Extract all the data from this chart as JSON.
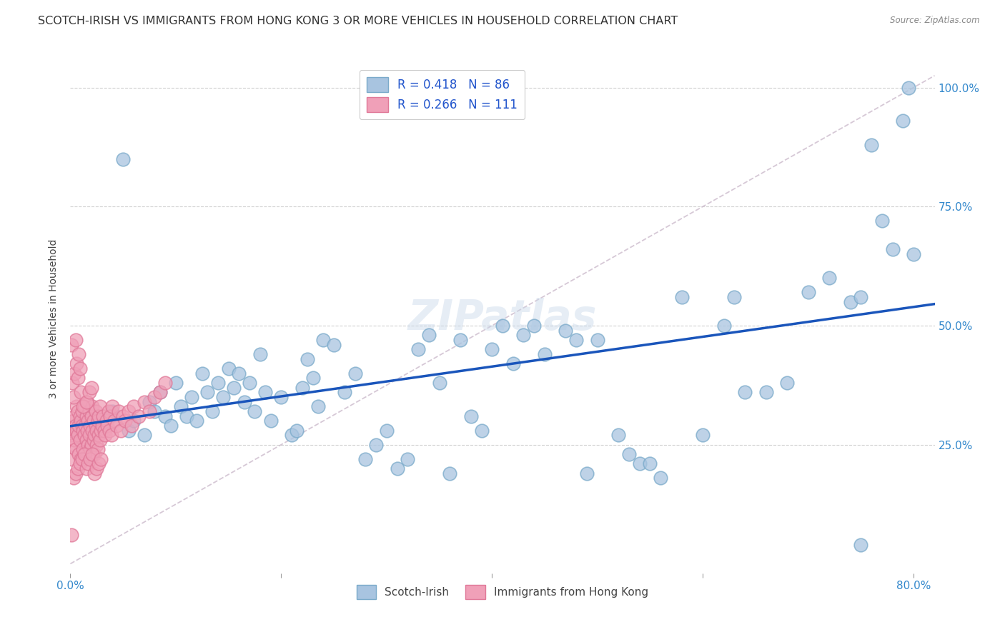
{
  "title": "SCOTCH-IRISH VS IMMIGRANTS FROM HONG KONG 3 OR MORE VEHICLES IN HOUSEHOLD CORRELATION CHART",
  "source": "Source: ZipAtlas.com",
  "ylabel": "3 or more Vehicles in Household",
  "xlim": [
    0.0,
    0.82
  ],
  "ylim": [
    -0.02,
    1.05
  ],
  "scotch_irish_color": "#a8c4e0",
  "scotch_irish_edge": "#7aaaca",
  "hk_color": "#f0a0b8",
  "hk_edge": "#e07898",
  "scotch_irish_R": 0.418,
  "scotch_irish_N": 86,
  "hk_R": 0.266,
  "hk_N": 111,
  "regression_line_color": "#1a55bb",
  "regression_line_pink": "#d080a0",
  "watermark": "ZIPatlas",
  "background_color": "#ffffff",
  "grid_color": "#cccccc",
  "title_fontsize": 11.5,
  "axis_label_fontsize": 10,
  "tick_fontsize": 11,
  "legend_fontsize": 12,
  "si_x": [
    0.025,
    0.04,
    0.055,
    0.06,
    0.07,
    0.075,
    0.08,
    0.085,
    0.09,
    0.095,
    0.1,
    0.105,
    0.11,
    0.115,
    0.12,
    0.125,
    0.13,
    0.135,
    0.14,
    0.145,
    0.15,
    0.155,
    0.16,
    0.165,
    0.17,
    0.175,
    0.18,
    0.185,
    0.19,
    0.2,
    0.21,
    0.215,
    0.22,
    0.225,
    0.23,
    0.235,
    0.24,
    0.25,
    0.26,
    0.27,
    0.28,
    0.29,
    0.3,
    0.31,
    0.32,
    0.33,
    0.34,
    0.35,
    0.36,
    0.37,
    0.38,
    0.39,
    0.4,
    0.41,
    0.42,
    0.43,
    0.44,
    0.45,
    0.47,
    0.48,
    0.49,
    0.5,
    0.52,
    0.53,
    0.54,
    0.55,
    0.56,
    0.58,
    0.6,
    0.62,
    0.63,
    0.64,
    0.66,
    0.68,
    0.7,
    0.72,
    0.74,
    0.75,
    0.76,
    0.77,
    0.78,
    0.79,
    0.795,
    0.8,
    0.75,
    0.05
  ],
  "si_y": [
    0.3,
    0.32,
    0.28,
    0.3,
    0.27,
    0.34,
    0.32,
    0.36,
    0.31,
    0.29,
    0.38,
    0.33,
    0.31,
    0.35,
    0.3,
    0.4,
    0.36,
    0.32,
    0.38,
    0.35,
    0.41,
    0.37,
    0.4,
    0.34,
    0.38,
    0.32,
    0.44,
    0.36,
    0.3,
    0.35,
    0.27,
    0.28,
    0.37,
    0.43,
    0.39,
    0.33,
    0.47,
    0.46,
    0.36,
    0.4,
    0.22,
    0.25,
    0.28,
    0.2,
    0.22,
    0.45,
    0.48,
    0.38,
    0.19,
    0.47,
    0.31,
    0.28,
    0.45,
    0.5,
    0.42,
    0.48,
    0.5,
    0.44,
    0.49,
    0.47,
    0.19,
    0.47,
    0.27,
    0.23,
    0.21,
    0.21,
    0.18,
    0.56,
    0.27,
    0.5,
    0.56,
    0.36,
    0.36,
    0.38,
    0.57,
    0.6,
    0.55,
    0.56,
    0.88,
    0.72,
    0.66,
    0.93,
    1.0,
    0.65,
    0.04,
    0.85
  ],
  "hk_x": [
    0.001,
    0.002,
    0.002,
    0.003,
    0.003,
    0.004,
    0.004,
    0.005,
    0.005,
    0.006,
    0.006,
    0.007,
    0.007,
    0.008,
    0.008,
    0.009,
    0.009,
    0.01,
    0.01,
    0.011,
    0.011,
    0.012,
    0.012,
    0.013,
    0.013,
    0.014,
    0.014,
    0.015,
    0.015,
    0.016,
    0.016,
    0.017,
    0.017,
    0.018,
    0.018,
    0.019,
    0.019,
    0.02,
    0.02,
    0.021,
    0.021,
    0.022,
    0.022,
    0.023,
    0.023,
    0.024,
    0.024,
    0.025,
    0.025,
    0.026,
    0.026,
    0.027,
    0.027,
    0.028,
    0.028,
    0.029,
    0.03,
    0.031,
    0.032,
    0.033,
    0.034,
    0.035,
    0.036,
    0.037,
    0.038,
    0.039,
    0.04,
    0.042,
    0.044,
    0.046,
    0.048,
    0.05,
    0.052,
    0.055,
    0.058,
    0.06,
    0.065,
    0.07,
    0.075,
    0.08,
    0.085,
    0.09,
    0.003,
    0.005,
    0.007,
    0.009,
    0.011,
    0.013,
    0.015,
    0.017,
    0.019,
    0.021,
    0.023,
    0.025,
    0.027,
    0.029,
    0.001,
    0.002,
    0.003,
    0.004,
    0.005,
    0.006,
    0.007,
    0.008,
    0.009,
    0.01,
    0.012,
    0.015,
    0.018,
    0.02,
    0.001
  ],
  "hk_y": [
    0.27,
    0.28,
    0.22,
    0.25,
    0.3,
    0.26,
    0.31,
    0.29,
    0.24,
    0.28,
    0.33,
    0.27,
    0.32,
    0.29,
    0.23,
    0.31,
    0.26,
    0.3,
    0.22,
    0.29,
    0.32,
    0.28,
    0.24,
    0.33,
    0.27,
    0.29,
    0.22,
    0.31,
    0.26,
    0.28,
    0.34,
    0.25,
    0.3,
    0.27,
    0.32,
    0.24,
    0.29,
    0.31,
    0.25,
    0.28,
    0.33,
    0.26,
    0.3,
    0.27,
    0.23,
    0.29,
    0.32,
    0.25,
    0.28,
    0.3,
    0.24,
    0.27,
    0.31,
    0.26,
    0.33,
    0.28,
    0.29,
    0.31,
    0.28,
    0.27,
    0.3,
    0.29,
    0.32,
    0.28,
    0.31,
    0.27,
    0.33,
    0.3,
    0.29,
    0.32,
    0.28,
    0.31,
    0.3,
    0.32,
    0.29,
    0.33,
    0.31,
    0.34,
    0.32,
    0.35,
    0.36,
    0.38,
    0.18,
    0.19,
    0.2,
    0.21,
    0.22,
    0.23,
    0.2,
    0.21,
    0.22,
    0.23,
    0.19,
    0.2,
    0.21,
    0.22,
    0.46,
    0.38,
    0.35,
    0.4,
    0.47,
    0.42,
    0.39,
    0.44,
    0.41,
    0.36,
    0.33,
    0.34,
    0.36,
    0.37,
    0.06
  ]
}
